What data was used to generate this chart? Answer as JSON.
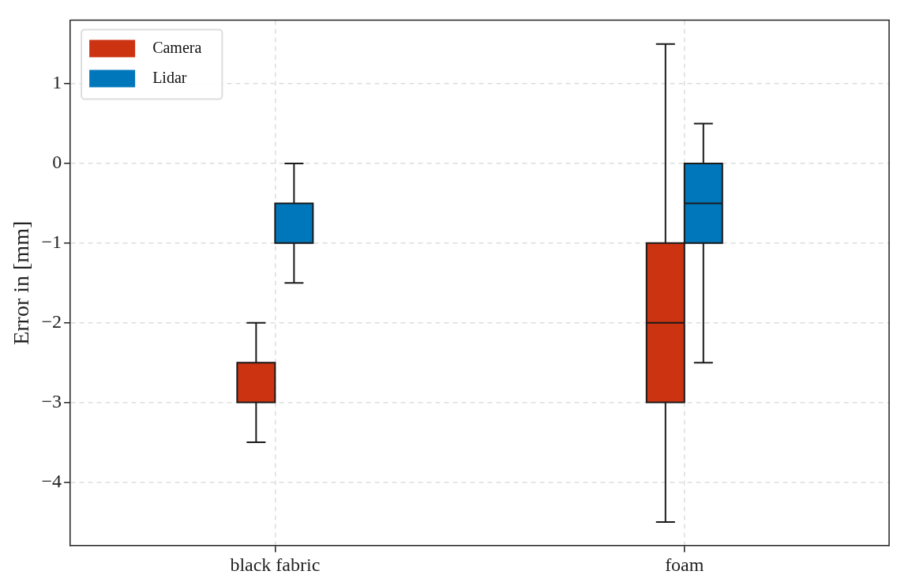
{
  "chart_data": {
    "type": "box",
    "ylabel": "Error in [mm]",
    "categories": [
      "black fabric",
      "foam"
    ],
    "series": [
      {
        "name": "Camera",
        "color": "#cc3311",
        "boxes": [
          {
            "low": -3.5,
            "q1": -3,
            "median": -3,
            "q3": -2.5,
            "high": -2
          },
          {
            "low": -4.5,
            "q1": -3,
            "median": -2,
            "q3": -1,
            "high": 1.5
          }
        ]
      },
      {
        "name": "Lidar",
        "color": "#0077bb",
        "boxes": [
          {
            "low": -1.5,
            "q1": -1,
            "median": -1,
            "q3": -0.5,
            "high": 0
          },
          {
            "low": -2.5,
            "q1": -1,
            "median": -0.5,
            "q3": 0,
            "high": 0.5
          }
        ]
      }
    ],
    "ylim": [
      -4.8,
      1.8
    ],
    "yticks": [
      {
        "value": -4,
        "label": "−4"
      },
      {
        "value": -3,
        "label": "−3"
      },
      {
        "value": -2,
        "label": "−2"
      },
      {
        "value": -1,
        "label": "−1"
      },
      0,
      1
    ],
    "grid": true,
    "legend": "top left"
  }
}
